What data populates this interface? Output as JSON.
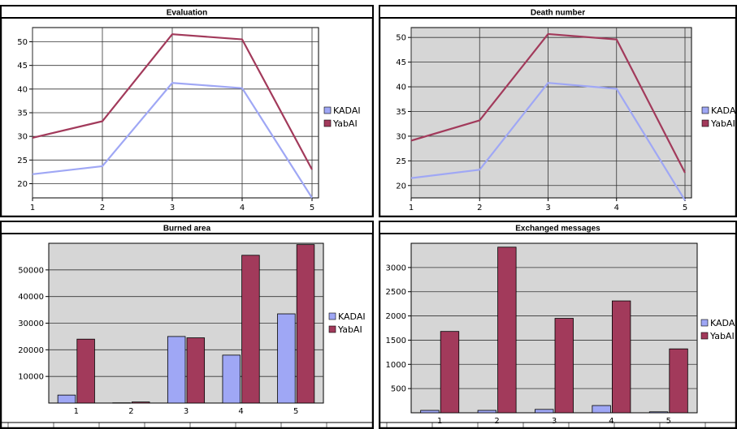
{
  "colors": {
    "kadai": "#9fa7f5",
    "yabai": "#a23a5b",
    "plot_bg_gray": "#d6d6d6",
    "plot_bg_white": "#ffffff"
  },
  "chart_data": [
    {
      "type": "line",
      "title": "Evaluation",
      "x": [
        1,
        2,
        3,
        4,
        5
      ],
      "series": [
        {
          "name": "KADAI",
          "values": [
            22,
            23.7,
            41.3,
            40.2,
            17
          ]
        },
        {
          "name": "YabAI",
          "values": [
            29.7,
            33.2,
            51.6,
            50.5,
            23
          ]
        }
      ],
      "ylim": [
        17,
        53
      ],
      "yticks": [
        20,
        25,
        30,
        35,
        40,
        45,
        50
      ],
      "xticks": [
        "1",
        "2",
        "3",
        "4",
        "5"
      ],
      "background": "white",
      "grid": true,
      "legend": "right"
    },
    {
      "type": "line",
      "title": "Death number",
      "x": [
        1,
        2,
        3,
        4,
        5
      ],
      "series": [
        {
          "name": "KADAI",
          "values": [
            21.5,
            23.2,
            40.8,
            39.6,
            17
          ]
        },
        {
          "name": "YabAI",
          "values": [
            29.1,
            33.2,
            50.7,
            49.6,
            22.6
          ]
        }
      ],
      "ylim": [
        17.5,
        52
      ],
      "yticks": [
        20,
        25,
        30,
        35,
        40,
        45,
        50
      ],
      "xticks": [
        "1",
        "2",
        "3",
        "4",
        "5"
      ],
      "background": "gray",
      "grid": true,
      "legend": "right"
    },
    {
      "type": "bar",
      "title": "Burned area",
      "categories": [
        "1",
        "2",
        "3",
        "4",
        "5"
      ],
      "series": [
        {
          "name": "KADAI",
          "values": [
            3000,
            100,
            25000,
            18000,
            33500
          ]
        },
        {
          "name": "YabAI",
          "values": [
            24000,
            400,
            24500,
            55500,
            59500
          ]
        }
      ],
      "ylim": [
        0,
        60000
      ],
      "yticks": [
        10000,
        20000,
        30000,
        40000,
        50000
      ],
      "background": "gray",
      "grid": true,
      "legend": "right"
    },
    {
      "type": "bar",
      "title": "Exchanged messages",
      "categories": [
        "1",
        "2",
        "3",
        "4",
        "5"
      ],
      "series": [
        {
          "name": "KADAI",
          "values": [
            50,
            50,
            70,
            150,
            20
          ]
        },
        {
          "name": "YabAI",
          "values": [
            1680,
            3420,
            1950,
            2310,
            1320
          ]
        }
      ],
      "ylim": [
        0,
        3500
      ],
      "yticks": [
        500,
        1000,
        1500,
        2000,
        2500,
        3000
      ],
      "background": "gray",
      "grid": true,
      "legend": "right"
    }
  ]
}
